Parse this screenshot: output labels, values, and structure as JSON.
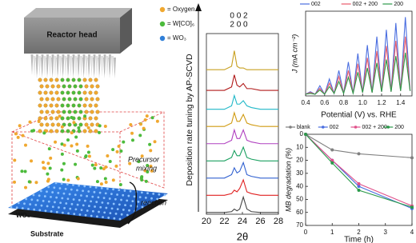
{
  "diagram": {
    "reactor_label": "Reactor head",
    "legend": [
      {
        "label": "= Oxygen",
        "color": "#f0a830"
      },
      {
        "label": "= W[CO]₆",
        "color": "#4cbb3c"
      },
      {
        "label": "= WO₃",
        "color": "#2f7fd8"
      }
    ],
    "precursor_label": [
      "Precursor",
      "mixing"
    ],
    "reaction_label": "reaction",
    "film_label": "WO₃",
    "substrate_label": "Substrate"
  },
  "chart_data": [
    {
      "type": "line",
      "ylabel": "Deposition rate tuning by AP-SCVD",
      "xlabel": "2θ",
      "annotations": [
        "0 0 2",
        "2 0 0"
      ],
      "x": [
        20,
        22,
        22.8,
        23.1,
        23.4,
        23.7,
        24.1,
        24.5,
        25,
        26,
        28
      ],
      "xlim": [
        20,
        28
      ],
      "xticks": [
        20,
        22,
        24,
        26,
        28
      ],
      "ylim": [
        0,
        10.5
      ],
      "series": [
        {
          "color": "#444444",
          "values": [
            0.1,
            0.1,
            0.15,
            0.3,
            0.2,
            0.3,
            1.0,
            0.3,
            0.15,
            0.1,
            0.1
          ]
        },
        {
          "color": "#e02020",
          "values": [
            1.1,
            1.1,
            1.2,
            1.4,
            1.3,
            1.5,
            2.0,
            1.3,
            1.2,
            1.1,
            1.1
          ]
        },
        {
          "color": "#3060d0",
          "values": [
            2.1,
            2.1,
            2.3,
            2.7,
            2.4,
            2.5,
            3.0,
            2.3,
            2.2,
            2.1,
            2.1
          ]
        },
        {
          "color": "#1aa060",
          "values": [
            3.1,
            3.1,
            3.3,
            3.7,
            3.4,
            3.4,
            3.9,
            3.3,
            3.2,
            3.1,
            3.1
          ]
        },
        {
          "color": "#b040c0",
          "values": [
            4.1,
            4.1,
            4.3,
            4.9,
            4.4,
            4.4,
            4.9,
            4.3,
            4.2,
            4.1,
            4.1
          ]
        },
        {
          "color": "#d09a10",
          "values": [
            5.1,
            5.1,
            5.3,
            5.9,
            5.4,
            5.4,
            5.8,
            5.3,
            5.2,
            5.1,
            5.1
          ]
        },
        {
          "color": "#20b8c8",
          "values": [
            6.1,
            6.1,
            6.3,
            6.9,
            6.4,
            6.4,
            6.6,
            6.3,
            6.2,
            6.1,
            6.1
          ]
        },
        {
          "color": "#b01818",
          "values": [
            7.2,
            7.2,
            7.4,
            8.1,
            7.5,
            7.4,
            7.6,
            7.3,
            7.3,
            7.2,
            7.2
          ]
        },
        {
          "color": "#c8a020",
          "values": [
            8.4,
            8.4,
            8.6,
            9.5,
            8.6,
            8.5,
            8.5,
            8.4,
            8.4,
            8.4,
            8.4
          ]
        }
      ]
    },
    {
      "type": "line",
      "ylabel": "J (mA cm⁻²)",
      "xlabel": "Potential (V) vs. RHE",
      "x": [
        0.4,
        0.45,
        0.5,
        0.55,
        0.6,
        0.65,
        0.7,
        0.75,
        0.8,
        0.85,
        0.9,
        0.95,
        1.0,
        1.05,
        1.1,
        1.15,
        1.2,
        1.25,
        1.3,
        1.35,
        1.4,
        1.45,
        1.5
      ],
      "xlim": [
        0.4,
        1.52
      ],
      "xticks": [
        0.4,
        0.6,
        0.8,
        {
          "value": 1.0,
          "label": "1.0"
        },
        1.2,
        1.4
      ],
      "ylim": [
        0,
        1.0
      ],
      "series": [
        {
          "name": "002",
          "color": "#4a6ee0",
          "values": [
            0.02,
            0.05,
            0.02,
            0.12,
            0.02,
            0.2,
            0.03,
            0.3,
            0.03,
            0.4,
            0.03,
            0.5,
            0.04,
            0.6,
            0.04,
            0.7,
            0.05,
            0.78,
            0.05,
            0.86,
            0.06,
            0.93,
            0.06
          ]
        },
        {
          "name": "002 + 200",
          "color": "#e85a6a",
          "values": [
            0.02,
            0.04,
            0.02,
            0.09,
            0.02,
            0.15,
            0.03,
            0.23,
            0.03,
            0.3,
            0.03,
            0.38,
            0.04,
            0.45,
            0.04,
            0.53,
            0.05,
            0.59,
            0.05,
            0.65,
            0.06,
            0.7,
            0.06
          ]
        },
        {
          "name": "200",
          "color": "#2a9a4a",
          "values": [
            0.02,
            0.03,
            0.02,
            0.07,
            0.02,
            0.11,
            0.03,
            0.17,
            0.03,
            0.22,
            0.03,
            0.28,
            0.04,
            0.33,
            0.04,
            0.39,
            0.05,
            0.43,
            0.05,
            0.47,
            0.06,
            0.51,
            0.06
          ]
        }
      ]
    },
    {
      "type": "line",
      "markers": true,
      "y_inverted": true,
      "ylabel": "MB degradation (%)",
      "xlabel": "Time (h)",
      "x": [
        0,
        1,
        2,
        4
      ],
      "xlim": [
        0,
        4
      ],
      "xticks": [
        0,
        1,
        2,
        3,
        4
      ],
      "ylim": [
        0,
        70
      ],
      "yticks": [
        0,
        10,
        20,
        30,
        40,
        50,
        60,
        70
      ],
      "series": [
        {
          "name": "blank",
          "color": "#808080",
          "values": [
            0,
            12,
            15,
            18
          ]
        },
        {
          "name": "002",
          "color": "#4a6ee0",
          "values": [
            0,
            20,
            40,
            57
          ]
        },
        {
          "name": "002 + 200",
          "color": "#e0508a",
          "values": [
            0,
            20,
            38,
            55
          ]
        },
        {
          "name": "200",
          "color": "#2a9a4a",
          "values": [
            0,
            22,
            43,
            56
          ]
        }
      ]
    }
  ]
}
